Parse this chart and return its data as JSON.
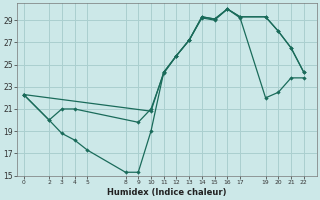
{
  "xlabel": "Humidex (Indice chaleur)",
  "background_color": "#cce8e8",
  "grid_color": "#aacfcf",
  "line_color": "#1a6b5a",
  "xlim": [
    -0.5,
    23
  ],
  "ylim": [
    15,
    30.5
  ],
  "xticks": [
    0,
    2,
    3,
    4,
    5,
    8,
    9,
    10,
    11,
    12,
    13,
    14,
    15,
    16,
    17,
    19,
    20,
    21,
    22
  ],
  "yticks": [
    15,
    17,
    19,
    21,
    23,
    25,
    27,
    29
  ],
  "series": [
    [
      [
        0,
        22.3
      ],
      [
        2,
        20.0
      ],
      [
        3,
        18.8
      ],
      [
        4,
        18.2
      ],
      [
        5,
        17.3
      ],
      [
        8,
        15.3
      ],
      [
        9,
        15.3
      ],
      [
        10,
        19.0
      ],
      [
        11,
        24.3
      ],
      [
        12,
        25.8
      ],
      [
        13,
        27.2
      ],
      [
        14,
        29.3
      ],
      [
        15,
        29.1
      ],
      [
        16,
        30.0
      ],
      [
        17,
        29.3
      ],
      [
        19,
        29.3
      ],
      [
        20,
        28.0
      ],
      [
        21,
        26.5
      ],
      [
        22,
        24.3
      ]
    ],
    [
      [
        0,
        22.3
      ],
      [
        2,
        20.0
      ],
      [
        3,
        21.0
      ],
      [
        4,
        21.0
      ],
      [
        9,
        19.8
      ],
      [
        10,
        21.0
      ],
      [
        11,
        24.2
      ],
      [
        12,
        25.8
      ],
      [
        13,
        27.2
      ],
      [
        14,
        29.2
      ],
      [
        15,
        29.0
      ],
      [
        16,
        30.0
      ],
      [
        17,
        29.2
      ],
      [
        19,
        22.0
      ],
      [
        20,
        22.5
      ],
      [
        21,
        23.8
      ],
      [
        22,
        23.8
      ]
    ],
    [
      [
        0,
        22.3
      ],
      [
        10,
        20.8
      ],
      [
        11,
        24.3
      ],
      [
        12,
        25.8
      ],
      [
        13,
        27.2
      ],
      [
        14,
        29.3
      ],
      [
        15,
        29.1
      ],
      [
        16,
        30.0
      ],
      [
        17,
        29.3
      ],
      [
        19,
        29.3
      ],
      [
        20,
        28.0
      ],
      [
        21,
        26.5
      ],
      [
        22,
        24.3
      ]
    ]
  ]
}
